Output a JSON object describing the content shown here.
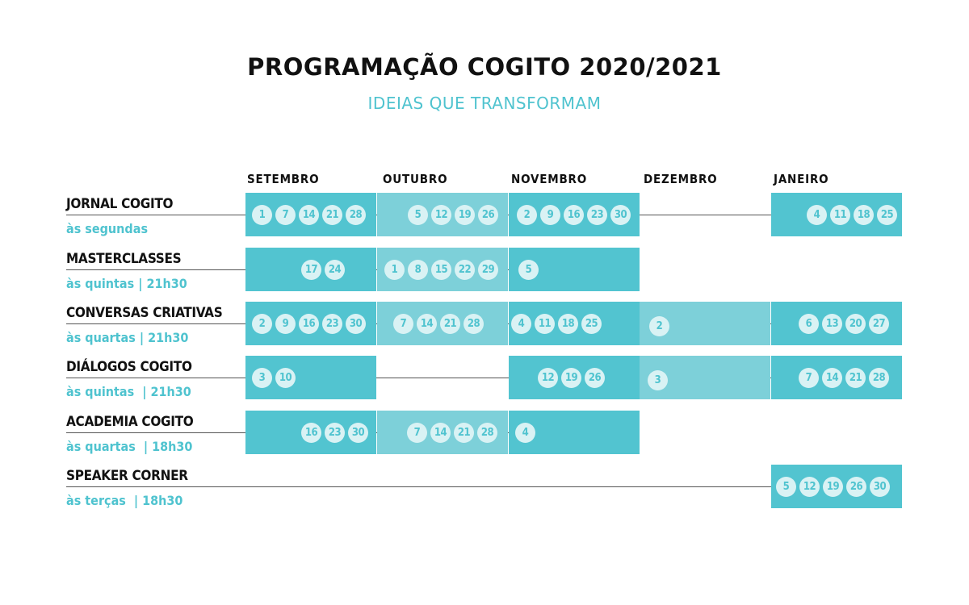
{
  "title": "PROGRAMAÇÃO COGITO 2020/2021",
  "subtitle": "IDEIAS QUE TRANSFORMAM",
  "months": [
    "SETEMBRO",
    "OUTUBRO",
    "NOVEMBRO",
    "DEZEMBRO",
    "JANEIRO"
  ],
  "colors": {
    "accent": "#52c4d0",
    "accent_light": "#7dd0d9",
    "dot_fill": "#d9f2f4",
    "text": "#111111"
  },
  "rows": [
    {
      "name": "JORNAL COGITO",
      "schedule": "às segundas",
      "cells": [
        {
          "month": 0,
          "shade": "dark",
          "dates": [
            "1",
            "7",
            "14",
            "21",
            "28"
          ]
        },
        {
          "month": 1,
          "shade": "light",
          "dates": [
            "5",
            "12",
            "19",
            "26"
          ]
        },
        {
          "month": 2,
          "shade": "dark",
          "dates": [
            "2",
            "9",
            "16",
            "23",
            "30"
          ]
        },
        {
          "month": 4,
          "shade": "dark",
          "dates": [
            "4",
            "11",
            "18",
            "25"
          ]
        }
      ]
    },
    {
      "name": "MASTERCLASSES",
      "schedule": "às quintas | 21h30",
      "cells": [
        {
          "month": 0,
          "shade": "dark",
          "dates": [
            "17",
            "24"
          ]
        },
        {
          "month": 1,
          "shade": "light",
          "dates": [
            "1",
            "8",
            "15",
            "22",
            "29"
          ]
        },
        {
          "month": 2,
          "shade": "dark",
          "dates": [
            "5"
          ]
        }
      ]
    },
    {
      "name": "CONVERSAS CRIATIVAS",
      "schedule": "às quartas | 21h30",
      "cells": [
        {
          "month": 0,
          "shade": "dark",
          "dates": [
            "2",
            "9",
            "16",
            "23",
            "30"
          ]
        },
        {
          "month": 1,
          "shade": "light",
          "dates": [
            "7",
            "14",
            "21",
            "28"
          ]
        },
        {
          "month": 2,
          "shade": "dark",
          "dates": [
            "4",
            "11",
            "18",
            "25"
          ]
        },
        {
          "month": 3,
          "shade": "light",
          "dates": [
            "2"
          ]
        },
        {
          "month": 4,
          "shade": "dark",
          "dates": [
            "6",
            "13",
            "20",
            "27"
          ]
        }
      ]
    },
    {
      "name": "DIÁLOGOS COGITO",
      "schedule": "às quintas  | 21h30",
      "cells": [
        {
          "month": 0,
          "shade": "dark",
          "dates": [
            "3",
            "10"
          ]
        },
        {
          "month": 2,
          "shade": "dark",
          "dates": [
            "12",
            "19",
            "26"
          ]
        },
        {
          "month": 3,
          "shade": "light",
          "dates": [
            "3"
          ]
        },
        {
          "month": 4,
          "shade": "dark",
          "dates": [
            "7",
            "14",
            "21",
            "28"
          ]
        }
      ]
    },
    {
      "name": "ACADEMIA COGITO",
      "schedule": "às quartas  | 18h30",
      "cells": [
        {
          "month": 0,
          "shade": "dark",
          "dates": [
            "16",
            "23",
            "30"
          ]
        },
        {
          "month": 1,
          "shade": "light",
          "dates": [
            "7",
            "14",
            "21",
            "28"
          ]
        },
        {
          "month": 2,
          "shade": "dark",
          "dates": [
            "4"
          ]
        }
      ]
    },
    {
      "name": "SPEAKER CORNER",
      "schedule": "às terças  | 18h30",
      "cells": [
        {
          "month": 4,
          "shade": "dark",
          "dates": [
            "5",
            "12",
            "19",
            "26",
            "30"
          ]
        }
      ]
    }
  ]
}
